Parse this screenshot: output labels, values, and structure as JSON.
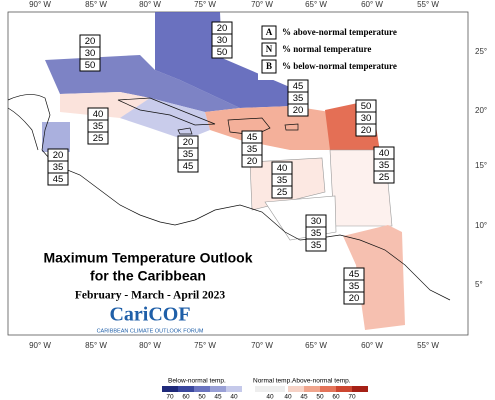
{
  "longitude_labels": [
    "90° W",
    "85° W",
    "80° W",
    "75° W",
    "70° W",
    "65° W",
    "60° W",
    "55° W"
  ],
  "latitude_labels": [
    "25°",
    "20°",
    "15°",
    "10°",
    "5°"
  ],
  "legend": [
    {
      "key": "A",
      "text": "% above-normal temperature"
    },
    {
      "key": "N",
      "text": "% normal temperature"
    },
    {
      "key": "B",
      "text": "% below-normal temperature"
    }
  ],
  "regions": [
    [
      20,
      30,
      50
    ],
    [
      20,
      30,
      50
    ],
    [
      45,
      35,
      20
    ],
    [
      40,
      35,
      25
    ],
    [
      50,
      30,
      20
    ],
    [
      20,
      35,
      45
    ],
    [
      45,
      35,
      20
    ],
    [
      20,
      35,
      45
    ],
    [
      40,
      35,
      25
    ],
    [
      40,
      35,
      25
    ],
    [
      30,
      35,
      35
    ],
    [
      45,
      35,
      20
    ]
  ],
  "title": {
    "line1": "Maximum Temperature Outlook",
    "line2": "for the Caribbean",
    "period": "February - March - April  2023"
  },
  "logo": {
    "name": "CariCOF",
    "subtitle": "CARIBBEAN CLIMATE OUTLOOK FORUM"
  },
  "colorbar": {
    "below": {
      "label": "Below-normal temp.",
      "ticks": [
        70,
        60,
        50,
        45,
        40
      ]
    },
    "normal": {
      "label": "Normal temp.",
      "ticks": [
        40
      ]
    },
    "above": {
      "label": "Above-normal temp.",
      "ticks": [
        40,
        45,
        50,
        60,
        70
      ]
    }
  }
}
